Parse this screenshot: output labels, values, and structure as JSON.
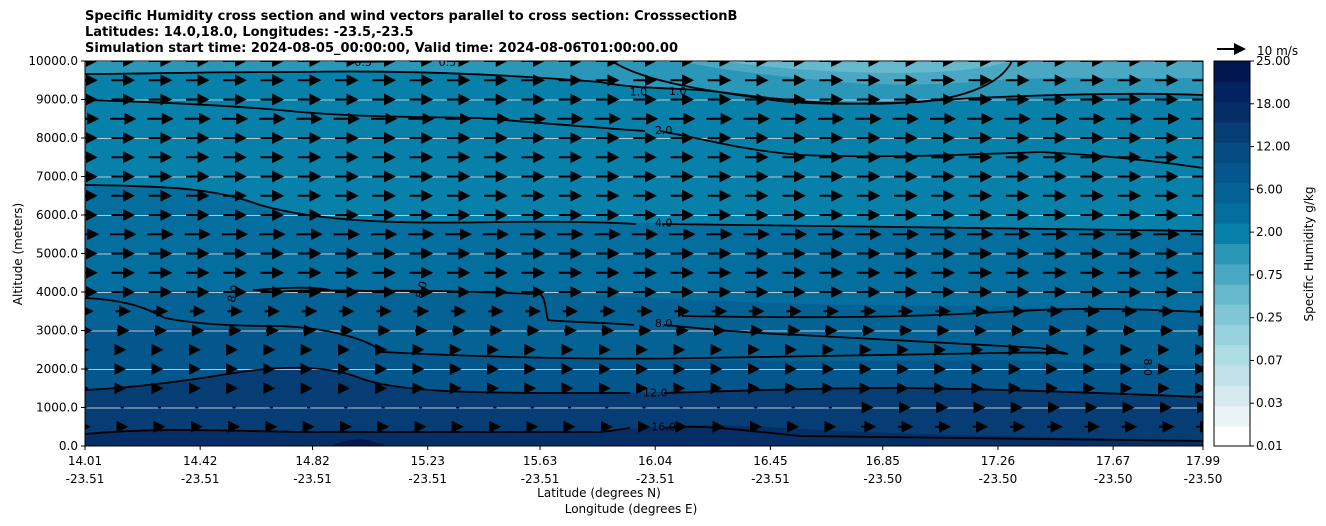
{
  "chart_data": {
    "type": "heatmap",
    "title_lines": [
      "Specific Humidity cross section and wind vectors parallel to cross section: CrosssectionB",
      "Latitudes: 14.0,18.0, Longitudes: -23.5,-23.5",
      "Simulation start time: 2024-08-05_00:00:00, Valid time: 2024-08-06T01:00:00.00"
    ],
    "ylabel": "Altitude (meters)",
    "xlabel_lat": "Latitude (degrees N)",
    "xlabel_lon": "Longitude (degrees E)",
    "ylim": [
      0,
      10000
    ],
    "y_ticks": [
      "0.0",
      "1000.0",
      "2000.0",
      "3000.0",
      "4000.0",
      "5000.0",
      "6000.0",
      "7000.0",
      "8000.0",
      "9000.0",
      "10000.0"
    ],
    "x_ticks": [
      {
        "lat": "14.01",
        "lon": "-23.51"
      },
      {
        "lat": "14.42",
        "lon": "-23.51"
      },
      {
        "lat": "14.82",
        "lon": "-23.51"
      },
      {
        "lat": "15.23",
        "lon": "-23.51"
      },
      {
        "lat": "15.63",
        "lon": "-23.51"
      },
      {
        "lat": "16.04",
        "lon": "-23.51"
      },
      {
        "lat": "16.45",
        "lon": "-23.51"
      },
      {
        "lat": "16.85",
        "lon": "-23.50"
      },
      {
        "lat": "17.26",
        "lon": "-23.50"
      },
      {
        "lat": "17.67",
        "lon": "-23.50"
      },
      {
        "lat": "17.99",
        "lon": "-23.50"
      }
    ],
    "colorbar": {
      "label": "Specific Humidity g/kg",
      "tick_labels": [
        "0.01",
        "0.03",
        "0.07",
        "0.25",
        "0.75",
        "2.00",
        "6.00",
        "12.00",
        "18.00",
        "25.00"
      ],
      "levels": [
        0.01,
        0.02,
        0.03,
        0.05,
        0.07,
        0.1,
        0.25,
        0.5,
        0.75,
        1.0,
        2.0,
        4.0,
        6.0,
        8.0,
        12.0,
        14.0,
        18.0,
        20.0,
        25.0
      ],
      "colors": [
        "#ffffff",
        "#eaf3f6",
        "#d6eaef",
        "#c1e0e9",
        "#addde4",
        "#98d2de",
        "#80c6d6",
        "#66b8cc",
        "#4aa8c2",
        "#2a96b8",
        "#0780aa",
        "#046e9e",
        "#056295",
        "#04578c",
        "#064b82",
        "#063d74",
        "#052d66",
        "#032260",
        "#021650"
      ]
    },
    "contour_labels": [
      {
        "text": "0.5",
        "lat": 15.0,
        "alt": 9950
      },
      {
        "text": "0.5",
        "lat": 15.3,
        "alt": 9950
      },
      {
        "text": "1.0",
        "lat": 15.98,
        "alt": 9180
      },
      {
        "text": "1.0",
        "lat": 16.12,
        "alt": 9200
      },
      {
        "text": "2.0",
        "lat": 16.07,
        "alt": 8180
      },
      {
        "text": "4.0",
        "lat": 16.07,
        "alt": 5780
      },
      {
        "text": "8.0",
        "lat": 14.54,
        "alt": 3950
      },
      {
        "text": "8.0",
        "lat": 15.21,
        "alt": 4050
      },
      {
        "text": "8.0",
        "lat": 16.07,
        "alt": 3170
      },
      {
        "text": "8.0",
        "lat": 17.79,
        "alt": 2050
      },
      {
        "text": "12.0",
        "lat": 16.04,
        "alt": 1370
      },
      {
        "text": "16.0",
        "lat": 16.07,
        "alt": 480
      }
    ],
    "wind_reference": {
      "label": "10 m/s",
      "speed": 10
    },
    "wind_speed_profile": [
      {
        "alt": 500,
        "speed": 3
      },
      {
        "alt": 1000,
        "speed": 1
      },
      {
        "alt": 1500,
        "speed": 1.5
      },
      {
        "alt": 2000,
        "speed": 1.5
      },
      {
        "alt": 2500,
        "speed": 1.5
      },
      {
        "alt": 3000,
        "speed": 4
      },
      {
        "alt": 3500,
        "speed": 5
      },
      {
        "alt": 4000,
        "speed": 8
      },
      {
        "alt": 4500,
        "speed": 8
      },
      {
        "alt": 5000,
        "speed": 8
      },
      {
        "alt": 5500,
        "speed": 9
      },
      {
        "alt": 6000,
        "speed": 8
      },
      {
        "alt": 6500,
        "speed": 8
      },
      {
        "alt": 7000,
        "speed": 8
      },
      {
        "alt": 7500,
        "speed": 8
      },
      {
        "alt": 8000,
        "speed": 8
      },
      {
        "alt": 8500,
        "speed": 9
      },
      {
        "alt": 9000,
        "speed": 8
      },
      {
        "alt": 9500,
        "speed": 8
      },
      {
        "alt": 10000,
        "speed": 8
      }
    ]
  }
}
